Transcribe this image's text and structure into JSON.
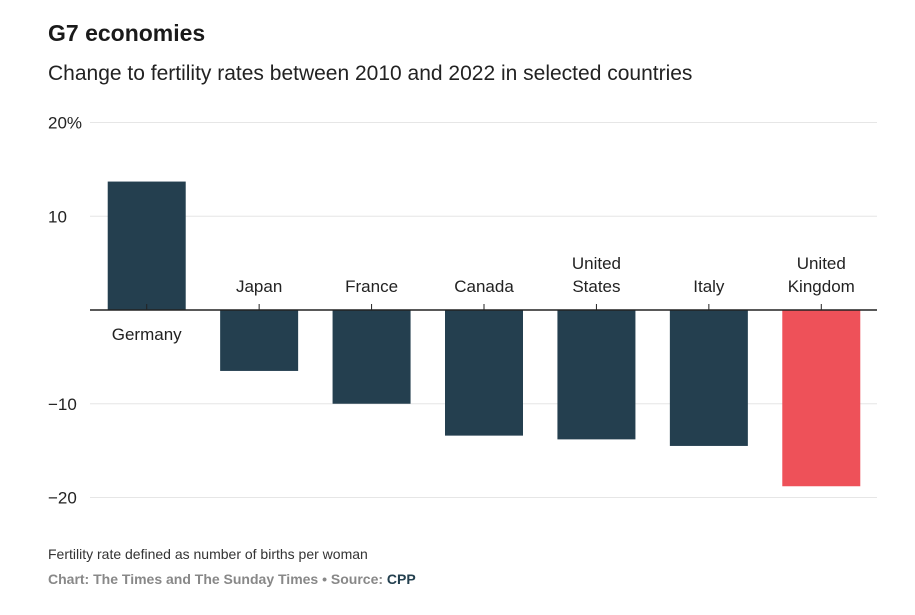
{
  "header": {
    "title": "G7 economies",
    "subtitle": "Change to fertility rates between 2010 and 2022 in selected countries"
  },
  "footer": {
    "note": "Fertility rate defined as number of births per woman",
    "credit": "Chart: The Times and The Sunday Times • Source: ",
    "source": "CPP"
  },
  "colors": {
    "bar": "#243f4f",
    "highlight": "#ee5159",
    "grid": "#e6e6e6",
    "axis": "#222222"
  },
  "chart_data": {
    "type": "bar",
    "title": "G7 economies",
    "subtitle": "Change to fertility rates between 2010 and 2022 in selected countries",
    "xlabel": "",
    "ylabel": "",
    "ylim": [
      -20,
      20
    ],
    "yticks": [
      {
        "value": 20,
        "label": "20%"
      },
      {
        "value": 10,
        "label": "10"
      },
      {
        "value": -10,
        "label": "−10"
      },
      {
        "value": -20,
        "label": "−20"
      }
    ],
    "grid": true,
    "categories": [
      [
        "Germany"
      ],
      [
        "Japan"
      ],
      [
        "France"
      ],
      [
        "Canada"
      ],
      [
        "United",
        "States"
      ],
      [
        "Italy"
      ],
      [
        "United",
        "Kingdom"
      ]
    ],
    "values": [
      13.7,
      -6.5,
      -10.0,
      -13.4,
      -13.8,
      -14.5,
      -18.8
    ],
    "highlight": [
      "United Kingdom"
    ]
  }
}
